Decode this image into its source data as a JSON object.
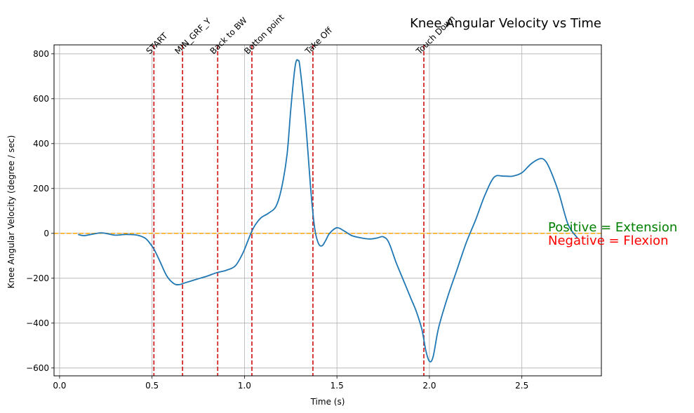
{
  "chart_data": {
    "type": "line",
    "title": "Knee Angular Velocity vs Time",
    "xlabel": "Time (s)",
    "ylabel": "Knee Angular Velocity (degree / sec)",
    "xlim": [
      -0.03,
      2.93
    ],
    "ylim": [
      -635,
      840
    ],
    "xticks": [
      0.0,
      0.5,
      1.0,
      1.5,
      2.0,
      2.5
    ],
    "xtick_labels": [
      "0.0",
      "0.5",
      "1.0",
      "1.5",
      "2.0",
      "2.5"
    ],
    "yticks": [
      -600,
      -400,
      -200,
      0,
      200,
      400,
      600,
      800
    ],
    "ytick_labels": [
      "−600",
      "−400",
      "−200",
      "0",
      "200",
      "400",
      "600",
      "800"
    ],
    "grid": true,
    "line_color": "#1f77b4",
    "event_color": "#d62728",
    "zero_line_color": "#ffa500",
    "series": [
      {
        "x": [
          0.1,
          0.13,
          0.17,
          0.22,
          0.25,
          0.3,
          0.36,
          0.42,
          0.46,
          0.48,
          0.51,
          0.54,
          0.58,
          0.62,
          0.65,
          0.68,
          0.72,
          0.76,
          0.8,
          0.85,
          0.9,
          0.95,
          0.99,
          1.02,
          1.04,
          1.06,
          1.09,
          1.13,
          1.17,
          1.2,
          1.23,
          1.25,
          1.27,
          1.28,
          1.29,
          1.3,
          1.33,
          1.36,
          1.38,
          1.4,
          1.42,
          1.44,
          1.46,
          1.5,
          1.54,
          1.58,
          1.63,
          1.68,
          1.72,
          1.75,
          1.78,
          1.82,
          1.86,
          1.9,
          1.93,
          1.96,
          1.98,
          2.0,
          2.02,
          2.05,
          2.1,
          2.15,
          2.2,
          2.25,
          2.3,
          2.35,
          2.4,
          2.45,
          2.5,
          2.55,
          2.6,
          2.63,
          2.66,
          2.7,
          2.75,
          2.8
        ],
        "y": [
          -5,
          -10,
          -5,
          2,
          0,
          -8,
          -5,
          -8,
          -20,
          -35,
          -70,
          -120,
          -190,
          -225,
          -228,
          -220,
          -210,
          -200,
          -190,
          -175,
          -165,
          -145,
          -90,
          -30,
          10,
          40,
          70,
          90,
          120,
          200,
          350,
          550,
          720,
          768,
          770,
          740,
          500,
          180,
          20,
          -45,
          -55,
          -30,
          0,
          25,
          10,
          -10,
          -20,
          -25,
          -20,
          -15,
          -40,
          -130,
          -210,
          -290,
          -350,
          -430,
          -520,
          -570,
          -550,
          -420,
          -280,
          -160,
          -40,
          60,
          170,
          250,
          255,
          255,
          270,
          310,
          333,
          320,
          270,
          180,
          40,
          -20
        ]
      }
    ],
    "events": [
      {
        "x": 0.51,
        "label": "START"
      },
      {
        "x": 0.665,
        "label": "MIN_GRF_Y"
      },
      {
        "x": 0.855,
        "label": "Back to BW"
      },
      {
        "x": 1.04,
        "label": "Botton point"
      },
      {
        "x": 1.37,
        "label": "Take Off"
      },
      {
        "x": 1.97,
        "label": "Touch Down"
      }
    ],
    "annotations": [
      {
        "text": "Positive = Extension",
        "color": "#008000"
      },
      {
        "text": "Negative = Flexion",
        "color": "#ff0000"
      }
    ]
  }
}
